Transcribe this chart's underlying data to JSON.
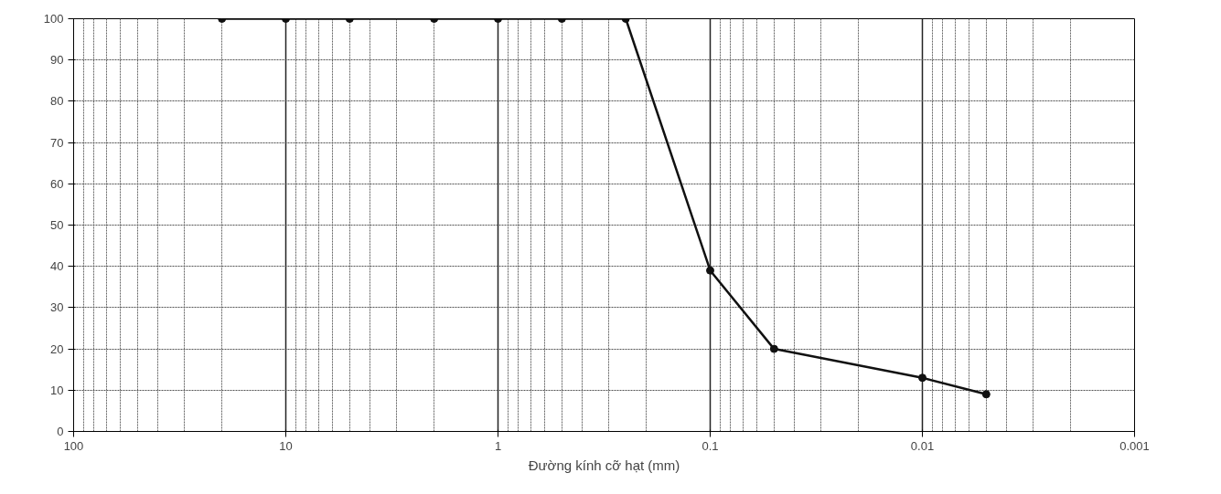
{
  "chart_data": {
    "type": "line",
    "xlabel": "Đường kính cỡ hạt (mm)",
    "x": [
      20,
      10,
      5,
      2,
      1,
      0.5,
      0.25,
      0.1,
      0.05,
      0.01,
      0.005
    ],
    "values": [
      100,
      100,
      100,
      100,
      100,
      100,
      100,
      39,
      20,
      13,
      9
    ],
    "color": "#111111",
    "log": "x",
    "xlim": [
      100,
      0.001
    ],
    "xticks": [
      100,
      10,
      1,
      0.1,
      0.01,
      0.001
    ],
    "ylim": [
      0,
      100
    ],
    "yticks": [
      0,
      10,
      20,
      30,
      40,
      50,
      60,
      70,
      80,
      90,
      100
    ],
    "grid": true,
    "marker": "circle",
    "line_style": "solid"
  }
}
